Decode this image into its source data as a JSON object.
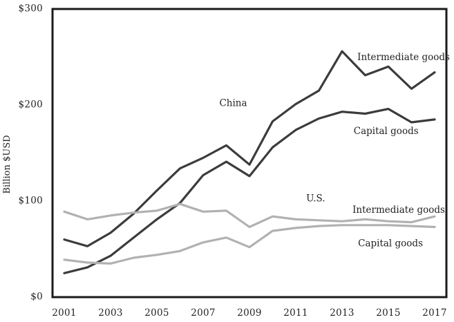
{
  "figure": {
    "background": "#ffffff",
    "axis_color": "#1a1a1a",
    "text_color": "#222222",
    "dark_series_color": "#3b3b3b",
    "light_series_color": "#b3b0b0"
  },
  "chart_data": {
    "type": "line",
    "title": "",
    "xlabel": "",
    "ylabel": "Billion $USD",
    "grid": false,
    "legend_position": "inline-annotations",
    "ylim": [
      0,
      300
    ],
    "xlim": [
      2000.5,
      2017.5
    ],
    "x": [
      2001,
      2002,
      2003,
      2004,
      2005,
      2006,
      2007,
      2008,
      2009,
      2010,
      2011,
      2012,
      2013,
      2014,
      2015,
      2016,
      2017
    ],
    "x_ticks": [
      2001,
      2003,
      2005,
      2007,
      2009,
      2011,
      2013,
      2015,
      2017
    ],
    "x_tick_labels": [
      "2001",
      "2003",
      "2005",
      "2007",
      "2009",
      "2011",
      "2013",
      "2015",
      "2017"
    ],
    "y_ticks": [
      0,
      100,
      200,
      300
    ],
    "y_tick_labels": [
      "$0",
      "$100",
      "$200",
      "$300"
    ],
    "series": [
      {
        "name": "China intermediate goods",
        "group": "China",
        "label": "Intermediate goods",
        "color": "#3b3b3b",
        "values": [
          60,
          53,
          67,
          87,
          111,
          134,
          145,
          158,
          138,
          183,
          201,
          215,
          256,
          231,
          240,
          217,
          234
        ]
      },
      {
        "name": "China capital goods",
        "group": "China",
        "label": "Capital goods",
        "color": "#3b3b3b",
        "values": [
          25,
          31,
          43,
          62,
          81,
          98,
          127,
          141,
          126,
          156,
          174,
          186,
          193,
          191,
          196,
          182,
          185
        ]
      },
      {
        "name": "U.S. intermediate goods",
        "group": "U.S.",
        "label": "Intermediate goods",
        "color": "#b3b0b0",
        "values": [
          89,
          81,
          85,
          88,
          90,
          97,
          89,
          90,
          73,
          84,
          81,
          80,
          79,
          81,
          79,
          78,
          84
        ]
      },
      {
        "name": "U.S. capital goods",
        "group": "U.S.",
        "label": "Capital goods",
        "color": "#b3b0b0",
        "values": [
          39,
          36,
          35,
          41,
          44,
          48,
          57,
          62,
          52,
          69,
          72,
          74,
          75,
          75,
          75,
          74,
          73
        ]
      }
    ],
    "annotations": [
      {
        "text": "China",
        "x": 2007.7,
        "y": 202,
        "anchor": "start"
      },
      {
        "text": "Intermediate goods",
        "x": 2013.66,
        "y": 250,
        "anchor": "start"
      },
      {
        "text": "Capital goods",
        "x": 2013.5,
        "y": 173,
        "anchor": "start"
      },
      {
        "text": "U.S.",
        "x": 2011.45,
        "y": 103,
        "anchor": "start"
      },
      {
        "text": "Intermediate goods",
        "x": 2013.45,
        "y": 91,
        "anchor": "start"
      },
      {
        "text": "Capital goods",
        "x": 2013.69,
        "y": 56,
        "anchor": "start"
      }
    ]
  }
}
